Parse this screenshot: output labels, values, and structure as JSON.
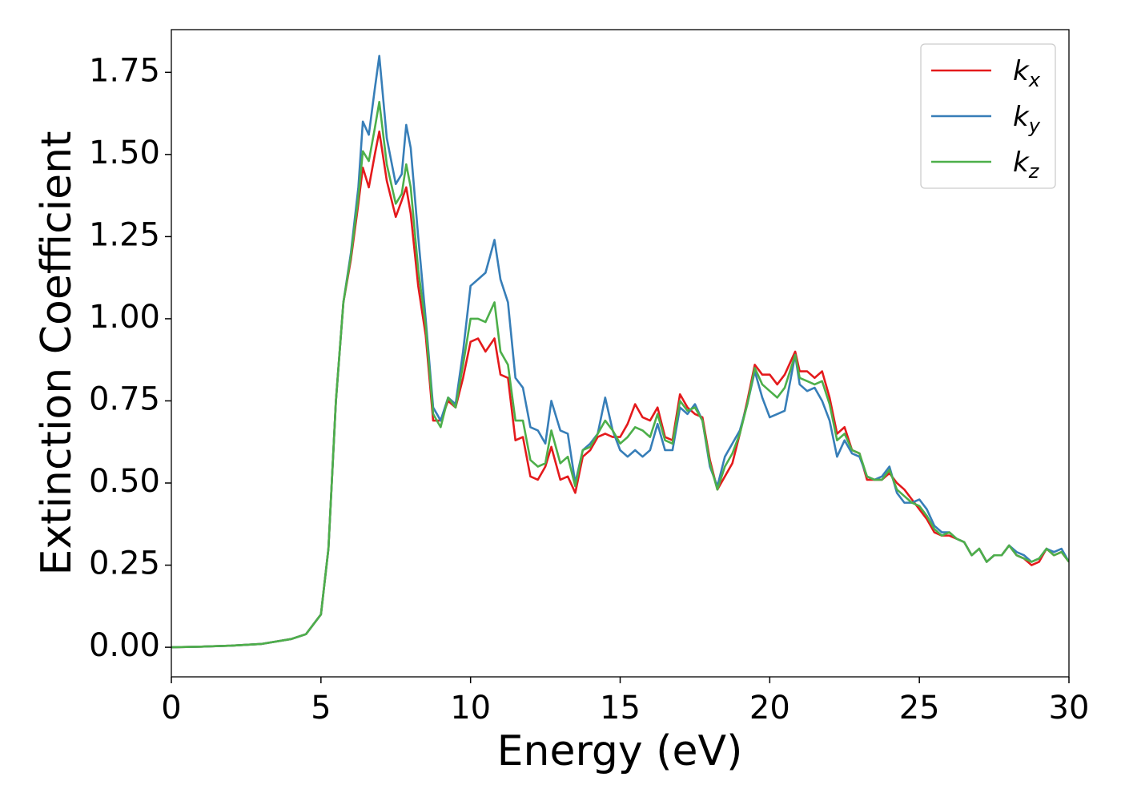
{
  "chart_data": {
    "type": "line",
    "xlabel": "Energy (eV)",
    "ylabel": "Extinction Coefficient",
    "xlim": [
      0,
      30
    ],
    "xticks": [
      0,
      5,
      10,
      15,
      20,
      25,
      30
    ],
    "ylim": [
      -0.09,
      1.88
    ],
    "yticks": [
      {
        "value": 0,
        "label": "0.00"
      },
      0.25,
      {
        "value": 0.5,
        "label": "0.50"
      },
      0.75,
      {
        "value": 1,
        "label": "1.00"
      },
      1.25,
      {
        "value": 1.5,
        "label": "1.50"
      },
      1.75
    ],
    "legend": "upper right",
    "grid": false,
    "x": [
      0,
      1,
      2,
      3,
      4,
      4.5,
      5,
      5.25,
      5.5,
      5.75,
      6,
      6.25,
      6.4,
      6.6,
      6.8,
      6.95,
      7.2,
      7.5,
      7.7,
      7.85,
      8,
      8.25,
      8.5,
      8.75,
      9,
      9.25,
      9.5,
      9.75,
      10,
      10.25,
      10.5,
      10.8,
      11,
      11.25,
      11.5,
      11.75,
      12,
      12.25,
      12.5,
      12.7,
      13,
      13.25,
      13.5,
      13.75,
      14,
      14.25,
      14.5,
      14.75,
      15,
      15.25,
      15.5,
      15.75,
      16,
      16.25,
      16.5,
      16.75,
      17,
      17.25,
      17.5,
      17.75,
      18,
      18.25,
      18.5,
      18.75,
      19,
      19.25,
      19.5,
      19.75,
      20,
      20.25,
      20.5,
      20.85,
      21,
      21.25,
      21.5,
      21.75,
      22,
      22.25,
      22.5,
      22.75,
      23,
      23.25,
      23.5,
      23.75,
      24,
      24.25,
      24.5,
      24.75,
      25,
      25.25,
      25.5,
      25.75,
      26,
      26.25,
      26.5,
      26.75,
      27,
      27.25,
      27.5,
      27.75,
      28,
      28.25,
      28.5,
      28.75,
      29,
      29.25,
      29.5,
      29.75,
      30
    ],
    "series": [
      {
        "name": "k_x",
        "color": "#e41a1c",
        "values": [
          0,
          0.002,
          0.005,
          0.01,
          0.025,
          0.04,
          0.1,
          0.3,
          0.75,
          1.05,
          1.18,
          1.35,
          1.46,
          1.4,
          1.5,
          1.57,
          1.42,
          1.31,
          1.36,
          1.4,
          1.32,
          1.1,
          0.95,
          0.69,
          0.69,
          0.75,
          0.73,
          0.82,
          0.93,
          0.94,
          0.9,
          0.94,
          0.83,
          0.82,
          0.63,
          0.64,
          0.52,
          0.51,
          0.55,
          0.61,
          0.51,
          0.52,
          0.47,
          0.58,
          0.6,
          0.64,
          0.65,
          0.64,
          0.64,
          0.68,
          0.74,
          0.7,
          0.69,
          0.73,
          0.64,
          0.63,
          0.77,
          0.73,
          0.71,
          0.7,
          0.57,
          0.48,
          0.52,
          0.56,
          0.65,
          0.75,
          0.86,
          0.83,
          0.83,
          0.8,
          0.83,
          0.9,
          0.84,
          0.84,
          0.82,
          0.84,
          0.76,
          0.65,
          0.67,
          0.6,
          0.59,
          0.51,
          0.51,
          0.51,
          0.53,
          0.5,
          0.48,
          0.45,
          0.42,
          0.39,
          0.35,
          0.34,
          0.34,
          0.33,
          0.32,
          0.28,
          0.3,
          0.26,
          0.28,
          0.28,
          0.31,
          0.28,
          0.27,
          0.25,
          0.26,
          0.3,
          0.28,
          0.29,
          0.26
        ]
      },
      {
        "name": "k_y",
        "color": "#377eb8",
        "values": [
          0,
          0.002,
          0.005,
          0.01,
          0.025,
          0.04,
          0.1,
          0.3,
          0.75,
          1.05,
          1.2,
          1.4,
          1.6,
          1.56,
          1.7,
          1.8,
          1.55,
          1.41,
          1.44,
          1.59,
          1.52,
          1.25,
          1.0,
          0.73,
          0.69,
          0.76,
          0.74,
          0.9,
          1.1,
          1.12,
          1.14,
          1.24,
          1.12,
          1.05,
          0.82,
          0.79,
          0.67,
          0.66,
          0.62,
          0.75,
          0.66,
          0.65,
          0.5,
          0.6,
          0.62,
          0.65,
          0.76,
          0.66,
          0.6,
          0.58,
          0.6,
          0.58,
          0.6,
          0.68,
          0.6,
          0.6,
          0.73,
          0.71,
          0.74,
          0.69,
          0.55,
          0.49,
          0.58,
          0.62,
          0.66,
          0.74,
          0.84,
          0.76,
          0.7,
          0.71,
          0.72,
          0.89,
          0.8,
          0.78,
          0.79,
          0.75,
          0.69,
          0.58,
          0.63,
          0.59,
          0.58,
          0.52,
          0.51,
          0.52,
          0.55,
          0.47,
          0.44,
          0.44,
          0.45,
          0.42,
          0.37,
          0.35,
          0.35,
          0.33,
          0.32,
          0.28,
          0.3,
          0.26,
          0.28,
          0.28,
          0.31,
          0.29,
          0.28,
          0.26,
          0.27,
          0.3,
          0.29,
          0.3,
          0.26
        ]
      },
      {
        "name": "k_z",
        "color": "#4daf4a",
        "values": [
          0,
          0.002,
          0.005,
          0.01,
          0.025,
          0.04,
          0.1,
          0.3,
          0.75,
          1.05,
          1.19,
          1.37,
          1.51,
          1.48,
          1.58,
          1.66,
          1.47,
          1.35,
          1.38,
          1.47,
          1.4,
          1.15,
          0.98,
          0.71,
          0.67,
          0.76,
          0.73,
          0.86,
          1.0,
          1.0,
          0.99,
          1.05,
          0.9,
          0.86,
          0.69,
          0.69,
          0.57,
          0.55,
          0.56,
          0.66,
          0.56,
          0.58,
          0.49,
          0.6,
          0.61,
          0.65,
          0.69,
          0.66,
          0.62,
          0.64,
          0.67,
          0.66,
          0.64,
          0.71,
          0.63,
          0.62,
          0.75,
          0.72,
          0.73,
          0.69,
          0.56,
          0.48,
          0.55,
          0.59,
          0.65,
          0.74,
          0.85,
          0.8,
          0.78,
          0.76,
          0.79,
          0.89,
          0.82,
          0.81,
          0.8,
          0.81,
          0.74,
          0.63,
          0.65,
          0.6,
          0.59,
          0.52,
          0.51,
          0.51,
          0.54,
          0.48,
          0.46,
          0.44,
          0.43,
          0.4,
          0.36,
          0.34,
          0.35,
          0.33,
          0.32,
          0.28,
          0.3,
          0.26,
          0.28,
          0.28,
          0.31,
          0.28,
          0.27,
          0.26,
          0.27,
          0.3,
          0.28,
          0.29,
          0.26
        ]
      }
    ]
  }
}
